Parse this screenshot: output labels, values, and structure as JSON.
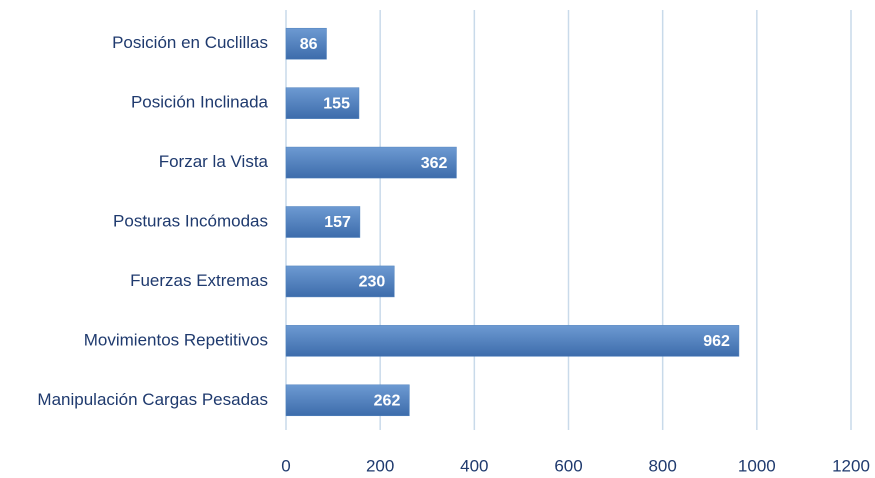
{
  "chart_data": {
    "type": "bar",
    "orientation": "horizontal",
    "categories": [
      "Posición en Cuclillas",
      "Posición Inclinada",
      "Forzar la Vista",
      "Posturas Incómodas",
      "Fuerzas Extremas",
      "Movimientos Repetitivos",
      "Manipulación Cargas Pesadas"
    ],
    "values": [
      86,
      155,
      362,
      157,
      230,
      962,
      262
    ],
    "color": "#4f81bd",
    "xlim": [
      0,
      1200
    ],
    "xticks": [
      0,
      200,
      400,
      600,
      800,
      1000,
      1200
    ],
    "grid": true
  }
}
